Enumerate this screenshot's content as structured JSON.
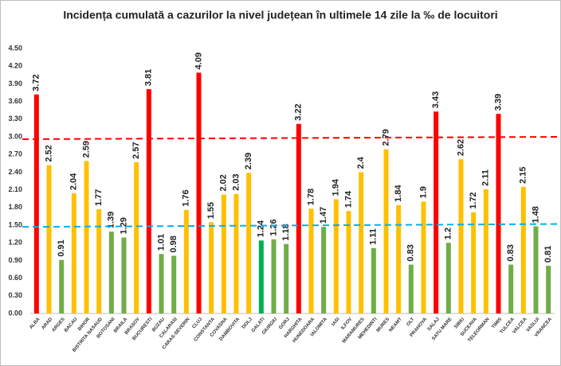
{
  "chart_data": {
    "type": "bar",
    "title": "Incidența cumulată a cazurilor la nivel județean în ultimele 14 zile la ‰ de locuitori",
    "categories": [
      "ALBA",
      "ARAD",
      "ARGES",
      "BACAU",
      "BIHOR",
      "BISTRITA NASAUD",
      "BOTOSANI",
      "BRAILA",
      "BRASOV",
      "BUCURESTI",
      "BUZAU",
      "CALARASI",
      "CARAS-SEVERIN",
      "CLUJ",
      "CONSTANTA",
      "COVASNA",
      "DAMBOVITA",
      "DOLJ",
      "GALATI",
      "GIURGIU",
      "GORJ",
      "HARGHITA",
      "HUNEDOARA",
      "IALOMITA",
      "IASI",
      "ILFOV",
      "MARAMURES",
      "MEHEDINTI",
      "MURES",
      "NEAMT",
      "OLT",
      "PRAHOVA",
      "SALAJ",
      "SATU MARE",
      "SIBIU",
      "SUCEAVA",
      "TELEORMAN",
      "TIMIS",
      "TULCEA",
      "VALCEA",
      "VASLUI",
      "VRANCEA"
    ],
    "values": [
      3.72,
      2.52,
      0.91,
      2.04,
      2.59,
      1.77,
      1.39,
      1.29,
      2.57,
      3.81,
      1.01,
      0.98,
      1.76,
      4.09,
      1.55,
      2.02,
      2.03,
      2.39,
      1.24,
      1.26,
      1.18,
      3.22,
      1.78,
      1.47,
      1.94,
      1.74,
      2.4,
      1.11,
      2.79,
      1.84,
      0.83,
      1.9,
      3.43,
      1.2,
      2.62,
      1.72,
      2.11,
      3.39,
      0.83,
      2.15,
      1.48,
      0.81
    ],
    "colors": [
      "#ff0000",
      "#ffc000",
      "#70ad47",
      "#ffc000",
      "#ffc000",
      "#ffc000",
      "#70ad47",
      "#70ad47",
      "#ffc000",
      "#ff0000",
      "#70ad47",
      "#70ad47",
      "#ffc000",
      "#ff0000",
      "#ffc000",
      "#ffc000",
      "#ffc000",
      "#ffc000",
      "#00b050",
      "#70ad47",
      "#70ad47",
      "#ff0000",
      "#ffc000",
      "#70ad47",
      "#ffc000",
      "#ffc000",
      "#ffc000",
      "#70ad47",
      "#ffc000",
      "#ffc000",
      "#70ad47",
      "#ffc000",
      "#ff0000",
      "#70ad47",
      "#ffc000",
      "#ffc000",
      "#ffc000",
      "#ff0000",
      "#70ad47",
      "#ffc000",
      "#70ad47",
      "#70ad47"
    ],
    "ylim": [
      0,
      4.5
    ],
    "yticks": [
      {
        "value": 0,
        "label": "0.00"
      },
      {
        "value": 0.3,
        "label": "0.30"
      },
      {
        "value": 0.6,
        "label": "0.60"
      },
      {
        "value": 0.9,
        "label": "0.90"
      },
      {
        "value": 1.2,
        "label": "1.20"
      },
      {
        "value": 1.5,
        "label": "1.50"
      },
      {
        "value": 1.8,
        "label": "1.80"
      },
      {
        "value": 2.1,
        "label": "2.10"
      },
      {
        "value": 2.4,
        "label": "2.40"
      },
      {
        "value": 2.7,
        "label": "2.70"
      },
      {
        "value": 3.0,
        "label": "3.00"
      },
      {
        "value": 3.3,
        "label": "3.30"
      },
      {
        "value": 3.6,
        "label": "3.60"
      },
      {
        "value": 3.9,
        "label": "3.90"
      },
      {
        "value": 4.2,
        "label": "4.20"
      },
      {
        "value": 4.5,
        "label": "4.50"
      }
    ],
    "reference_lines": [
      {
        "values": [
          2.96,
          3.0
        ],
        "color": "#ff0000"
      },
      {
        "values": [
          1.47,
          1.52
        ],
        "color": "#00b0f0"
      }
    ]
  }
}
